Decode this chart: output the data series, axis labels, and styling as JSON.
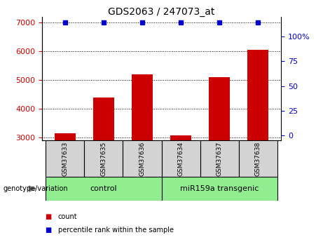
{
  "title": "GDS2063 / 247073_at",
  "samples": [
    "GSM37633",
    "GSM37635",
    "GSM37636",
    "GSM37634",
    "GSM37637",
    "GSM37638"
  ],
  "counts": [
    3150,
    4400,
    5200,
    3080,
    5100,
    6050
  ],
  "percentile_ranks": [
    100,
    100,
    100,
    100,
    100,
    100
  ],
  "ylim_left": [
    2900,
    7200
  ],
  "ylim_right": [
    -5,
    120
  ],
  "yticks_left": [
    3000,
    4000,
    5000,
    6000,
    7000
  ],
  "yticks_right": [
    0,
    25,
    50,
    75,
    100
  ],
  "ytick_labels_right": [
    "0",
    "25",
    "50",
    "75",
    "100%"
  ],
  "bar_color": "#cc0000",
  "percentile_color": "#0000cc",
  "groups": [
    {
      "label": "control",
      "indices": [
        0,
        1,
        2
      ],
      "color": "#90EE90"
    },
    {
      "label": "miR159a transgenic",
      "indices": [
        3,
        4,
        5
      ],
      "color": "#90EE90"
    }
  ],
  "group_label_prefix": "genotype/variation",
  "legend_items": [
    {
      "label": "count",
      "color": "#cc0000"
    },
    {
      "label": "percentile rank within the sample",
      "color": "#0000cc"
    }
  ],
  "background_color": "#ffffff",
  "bar_width": 0.55,
  "left_tick_color": "#cc0000",
  "right_tick_color": "#0000cc",
  "sample_box_color": "#d3d3d3",
  "arrow_color": "#808080"
}
